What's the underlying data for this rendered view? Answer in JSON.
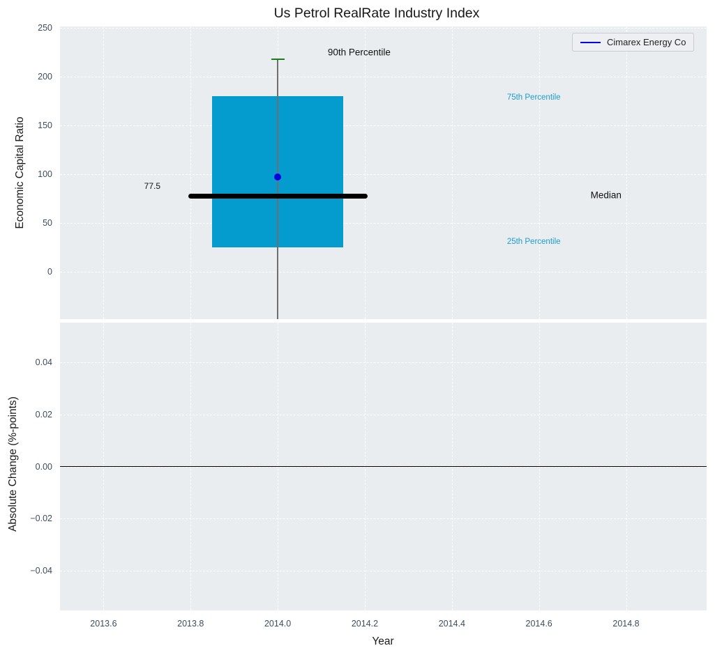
{
  "title": "Us Petrol RealRate Industry Index",
  "legend": {
    "label": "Cimarex Energy Co",
    "line_color": "#0000ee"
  },
  "colors": {
    "plot_bg": "#e9edef",
    "grid": "#ffffff",
    "box_fill": "#049bce",
    "median_line": "#000000",
    "company_point": "#0000e0",
    "p90_cap": "#1a7d1a",
    "whisker": "#6f6f6f",
    "tick_label": "#3c4c5e",
    "percentile_label": "#1b9cd1",
    "zero_line": "#000000"
  },
  "chart_data": [
    {
      "type": "box",
      "title": "Us Petrol RealRate Industry Index",
      "ylabel": "Economic Capital Ratio",
      "xlim": [
        2013.5,
        2014.985
      ],
      "ylim": [
        -48.5,
        251.5
      ],
      "grid": true,
      "yticks": [
        0,
        50,
        100,
        150,
        200,
        250
      ],
      "ytick_labels": [
        "0",
        "50",
        "100",
        "150",
        "200",
        "250"
      ],
      "box": {
        "x": 2014.0,
        "box_halfwidth": 0.151,
        "q1": 25,
        "q3": 180,
        "median": 77.5,
        "median_halfwidth": 0.206,
        "p90": 218,
        "whisker_low_drawn_to": -48.5,
        "company_point": {
          "name": "Cimarex Energy Co",
          "value": 97
        }
      },
      "annotations": [
        {
          "text": "90th Percentile",
          "x": 2014.187,
          "y": 225,
          "size": 13.5,
          "color": "#111111"
        },
        {
          "text": "77.5",
          "x": 2013.712,
          "y": 88,
          "size": 12,
          "color": "#111111"
        },
        {
          "text": "75th Percentile",
          "x": 2014.588,
          "y": 179,
          "size": 11.5,
          "color": "#1b9cd1"
        },
        {
          "text": "Median",
          "x": 2014.754,
          "y": 79,
          "size": 13.5,
          "color": "#111111"
        },
        {
          "text": "25th Percentile",
          "x": 2014.588,
          "y": 31,
          "size": 11.5,
          "color": "#1b9cd1"
        }
      ],
      "legend_entries": [
        "Cimarex Energy Co"
      ]
    },
    {
      "type": "line",
      "ylabel": "Absolute Change (%-points)",
      "xlabel": "Year",
      "xlim": [
        2013.5,
        2014.985
      ],
      "ylim": [
        -0.0551,
        0.0551
      ],
      "grid": true,
      "yticks": [
        0.04,
        0.02,
        0.0,
        -0.02,
        -0.04
      ],
      "ytick_labels": [
        "0.04",
        "0.02",
        "0.00",
        "−0.02",
        "−0.04"
      ],
      "xticks": [
        2013.6,
        2013.8,
        2014.0,
        2014.2,
        2014.4,
        2014.6,
        2014.8
      ],
      "xtick_labels": [
        "2013.6",
        "2013.8",
        "2014.0",
        "2014.2",
        "2014.4",
        "2014.6",
        "2014.8"
      ],
      "zero_line": 0.0,
      "series": []
    }
  ]
}
